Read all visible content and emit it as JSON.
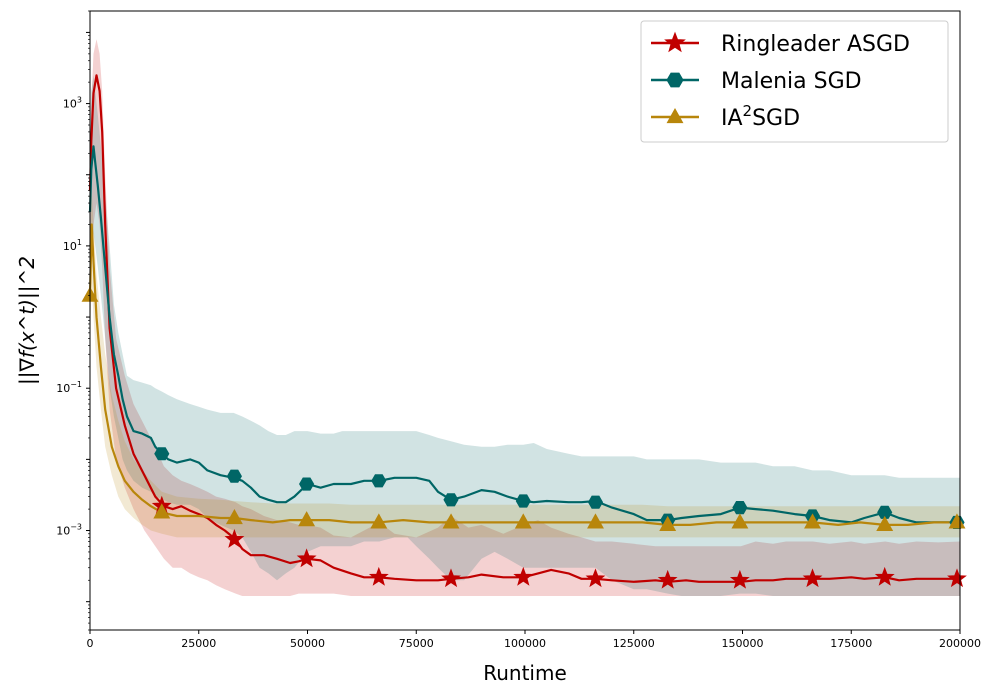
{
  "chart_data": {
    "type": "line",
    "xlabel": "Runtime",
    "ylabel": "||∇f(x^t)||^2",
    "yscale": "log",
    "xlim": [
      0,
      200000
    ],
    "ylim": [
      4e-05,
      20000
    ],
    "x_ticks": [
      0,
      25000,
      50000,
      75000,
      100000,
      125000,
      150000,
      175000,
      200000
    ],
    "y_ticks": [
      {
        "value": 0.001,
        "base": "10",
        "exp": "−3"
      },
      {
        "value": 0.1,
        "base": "10",
        "exp": "−1"
      },
      {
        "value": 10,
        "base": "10",
        "exp": "1"
      },
      {
        "value": 1000,
        "base": "10",
        "exp": "3"
      }
    ],
    "legend_position": "top-right",
    "series": [
      {
        "name": "Ringleader ASGD",
        "legend_label": "Ringleader ASGD",
        "color": "#c00000",
        "marker": "star",
        "x": [
          0,
          300,
          800,
          1500,
          2200,
          2800,
          3500,
          4500,
          6000,
          8000,
          10000,
          12500,
          15000,
          17000,
          19000,
          21000,
          23000,
          25000,
          27000,
          29000,
          31000,
          33500,
          35000,
          37000,
          40000,
          43000,
          46000,
          48000,
          50000,
          53000,
          56000,
          60000,
          63000,
          66500,
          70000,
          75000,
          80000,
          83000,
          87000,
          90000,
          95000,
          99600,
          103000,
          106000,
          110000,
          113000,
          116200,
          120000,
          125000,
          130000,
          133000,
          137000,
          140000,
          145000,
          149600,
          153000,
          157000,
          160000,
          166200,
          170000,
          175000,
          178000,
          182800,
          186000,
          190000,
          195000,
          200000
        ],
        "y": [
          60,
          300,
          1400,
          2500,
          1500,
          400,
          20,
          0.7,
          0.1,
          0.03,
          0.012,
          0.006,
          0.003,
          0.0022,
          0.002,
          0.0022,
          0.0019,
          0.0017,
          0.0015,
          0.0012,
          0.001,
          0.00075,
          0.00055,
          0.00045,
          0.00045,
          0.0004,
          0.00035,
          0.00037,
          0.0004,
          0.00038,
          0.0003,
          0.00025,
          0.00022,
          0.00022,
          0.00021,
          0.0002,
          0.0002,
          0.00021,
          0.00022,
          0.00024,
          0.00022,
          0.00022,
          0.00025,
          0.00028,
          0.00025,
          0.00021,
          0.00021,
          0.0002,
          0.00019,
          0.0002,
          0.00019,
          0.0002,
          0.00019,
          0.00019,
          0.00019,
          0.0002,
          0.0002,
          0.00021,
          0.00021,
          0.00021,
          0.00022,
          0.00021,
          0.00022,
          0.0002,
          0.00021,
          0.00021,
          0.00021
        ],
        "band_low": [
          2,
          5,
          20,
          40,
          20,
          5,
          0.5,
          0.05,
          0.01,
          0.004,
          0.002,
          0.001,
          0.0006,
          0.0004,
          0.0003,
          0.0003,
          0.00025,
          0.00022,
          0.0002,
          0.00017,
          0.00015,
          0.00013,
          0.00012,
          0.00012,
          0.00012,
          0.00012,
          0.00012,
          0.00013,
          0.00013,
          0.00013,
          0.00013,
          0.00012,
          0.00012,
          0.00012,
          0.00012,
          0.00012,
          0.00012,
          0.00012,
          0.00012,
          0.00012,
          0.00012,
          0.00012,
          0.00012,
          0.00012,
          0.00012,
          0.00012,
          0.00012,
          0.00012,
          0.00012,
          0.00012,
          0.00012,
          0.00012,
          0.00012,
          0.00012,
          0.00012,
          0.00012,
          0.00012,
          0.00012,
          0.00012,
          0.00012,
          0.00012,
          0.00012,
          0.00012,
          0.00012,
          0.00012,
          0.00012,
          0.00012
        ],
        "band_high": [
          150,
          1000,
          5000,
          8000,
          5000,
          1500,
          100,
          5,
          0.5,
          0.15,
          0.06,
          0.03,
          0.015,
          0.008,
          0.006,
          0.005,
          0.0045,
          0.004,
          0.0035,
          0.003,
          0.0028,
          0.0025,
          0.0022,
          0.002,
          0.0016,
          0.0014,
          0.0013,
          0.0012,
          0.0012,
          0.0011,
          0.00085,
          0.0008,
          0.001,
          0.0013,
          0.0009,
          0.0008,
          0.0011,
          0.0016,
          0.0011,
          0.0012,
          0.0009,
          0.0012,
          0.0014,
          0.0011,
          0.0009,
          0.0008,
          0.0007,
          0.0007,
          0.00065,
          0.0006,
          0.0006,
          0.0006,
          0.0006,
          0.0006,
          0.0006,
          0.0007,
          0.00065,
          0.0007,
          0.0007,
          0.00065,
          0.0007,
          0.00065,
          0.0007,
          0.00065,
          0.0007,
          0.00068,
          0.0007
        ],
        "markers_x": [
          16500,
          33200,
          49800,
          66400,
          83000,
          99600,
          116200,
          132800,
          149400,
          166100,
          182700,
          199300
        ],
        "markers_y": [
          0.0022,
          0.00075,
          0.0004,
          0.00022,
          0.00021,
          0.00022,
          0.00021,
          0.0002,
          0.0002,
          0.00021,
          0.00022,
          0.00021
        ]
      },
      {
        "name": "Malenia SGD",
        "legend_label": "Malenia SGD",
        "color": "#006666",
        "marker": "hexagon",
        "x": [
          0,
          300,
          800,
          1200,
          1800,
          2500,
          3500,
          4500,
          5500,
          6500,
          7500,
          8500,
          10000,
          12000,
          14000,
          15000,
          16500,
          18000,
          20000,
          23000,
          25000,
          27000,
          30000,
          33000,
          35000,
          37000,
          39000,
          41000,
          43000,
          45000,
          47000,
          50000,
          53000,
          56000,
          58000,
          60000,
          63000,
          66500,
          70000,
          73000,
          75000,
          78000,
          80000,
          83000,
          86000,
          90000,
          93000,
          96000,
          99600,
          102000,
          105000,
          110000,
          113000,
          116200,
          120000,
          125000,
          128000,
          132800,
          136000,
          140000,
          145000,
          149400,
          153000,
          157000,
          162000,
          166100,
          170000,
          175000,
          178000,
          182700,
          186000,
          190000,
          195000,
          200000
        ],
        "y": [
          30,
          120,
          250,
          150,
          70,
          25,
          5,
          1,
          0.3,
          0.15,
          0.07,
          0.04,
          0.025,
          0.023,
          0.02,
          0.015,
          0.012,
          0.01,
          0.009,
          0.01,
          0.009,
          0.007,
          0.006,
          0.0055,
          0.005,
          0.004,
          0.003,
          0.0027,
          0.0025,
          0.0025,
          0.003,
          0.0045,
          0.004,
          0.0045,
          0.0045,
          0.0045,
          0.005,
          0.005,
          0.0055,
          0.0055,
          0.0055,
          0.005,
          0.0035,
          0.0027,
          0.003,
          0.0037,
          0.0035,
          0.003,
          0.0026,
          0.0025,
          0.0026,
          0.0025,
          0.0025,
          0.0026,
          0.0021,
          0.0017,
          0.0014,
          0.0014,
          0.0015,
          0.0016,
          0.0017,
          0.0021,
          0.002,
          0.0019,
          0.0017,
          0.0016,
          0.0014,
          0.0013,
          0.0015,
          0.0018,
          0.0015,
          0.0013,
          0.0013,
          0.0013
        ],
        "band_low": [
          1,
          5,
          15,
          10,
          5,
          2,
          0.5,
          0.1,
          0.04,
          0.02,
          0.01,
          0.007,
          0.005,
          0.004,
          0.0035,
          0.003,
          0.0028,
          0.0025,
          0.0023,
          0.0023,
          0.002,
          0.0015,
          0.0012,
          0.001,
          0.0008,
          0.0005,
          0.0003,
          0.00025,
          0.0002,
          0.00025,
          0.0003,
          0.0005,
          0.0006,
          0.0006,
          0.0006,
          0.0006,
          0.0007,
          0.0007,
          0.0008,
          0.0008,
          0.0006,
          0.0004,
          0.0003,
          0.0002,
          0.0002,
          0.0004,
          0.0005,
          0.0004,
          0.0003,
          0.0003,
          0.0003,
          0.0003,
          0.0003,
          0.0003,
          0.0002,
          0.00015,
          0.00015,
          0.00013,
          0.00012,
          0.00012,
          0.00012,
          0.00013,
          0.00013,
          0.00012,
          0.00012,
          0.00012,
          0.00012,
          0.00012,
          0.00012,
          0.00012,
          0.00012,
          0.00012,
          0.00012,
          0.00012
        ],
        "band_high": [
          300,
          1500,
          2500,
          1500,
          700,
          250,
          50,
          10,
          1.5,
          0.6,
          0.3,
          0.15,
          0.13,
          0.12,
          0.11,
          0.1,
          0.09,
          0.08,
          0.07,
          0.06,
          0.055,
          0.05,
          0.045,
          0.045,
          0.04,
          0.035,
          0.03,
          0.025,
          0.022,
          0.022,
          0.025,
          0.025,
          0.023,
          0.023,
          0.025,
          0.025,
          0.025,
          0.025,
          0.025,
          0.025,
          0.025,
          0.022,
          0.02,
          0.018,
          0.016,
          0.015,
          0.015,
          0.016,
          0.016,
          0.017,
          0.014,
          0.012,
          0.011,
          0.011,
          0.011,
          0.011,
          0.01,
          0.01,
          0.01,
          0.01,
          0.009,
          0.009,
          0.009,
          0.008,
          0.008,
          0.007,
          0.007,
          0.006,
          0.006,
          0.006,
          0.0055,
          0.0055,
          0.0055,
          0.0055
        ],
        "markers_x": [
          16500,
          33200,
          49800,
          66400,
          83000,
          99600,
          116200,
          132800,
          149400,
          166100,
          182700,
          199300
        ],
        "markers_y": [
          0.012,
          0.0058,
          0.0045,
          0.005,
          0.0027,
          0.0026,
          0.0025,
          0.0014,
          0.0021,
          0.0016,
          0.0018,
          0.0013
        ]
      },
      {
        "name": "IA2SGD",
        "legend_label": "IA",
        "legend_sup": "2",
        "legend_suffix": "SGD",
        "color": "#b8860b",
        "marker": "triangle",
        "x": [
          0,
          400,
          800,
          1500,
          2500,
          3500,
          5000,
          6500,
          8000,
          10000,
          12000,
          14000,
          16500,
          20000,
          25000,
          30000,
          33200,
          37000,
          42000,
          46000,
          49800,
          55000,
          60000,
          66400,
          72000,
          78000,
          83000,
          88000,
          93000,
          99600,
          105000,
          110000,
          116200,
          122000,
          127000,
          132800,
          138000,
          144000,
          149400,
          155000,
          160000,
          166100,
          172000,
          177000,
          182700,
          188000,
          194000,
          200000
        ],
        "y": [
          2,
          20,
          6,
          1,
          0.2,
          0.05,
          0.015,
          0.008,
          0.005,
          0.0035,
          0.0027,
          0.0022,
          0.0018,
          0.0016,
          0.0016,
          0.0015,
          0.0015,
          0.0014,
          0.0013,
          0.0014,
          0.0014,
          0.0014,
          0.0013,
          0.0013,
          0.0014,
          0.0013,
          0.0013,
          0.0013,
          0.0013,
          0.0013,
          0.0013,
          0.0013,
          0.0013,
          0.0013,
          0.0013,
          0.0012,
          0.0012,
          0.0013,
          0.0013,
          0.0013,
          0.0013,
          0.0013,
          0.0012,
          0.0013,
          0.0012,
          0.0012,
          0.0013,
          0.0013
        ],
        "band_low": [
          0.5,
          3,
          1,
          0.2,
          0.05,
          0.015,
          0.006,
          0.003,
          0.002,
          0.0015,
          0.0012,
          0.001,
          0.0009,
          0.0008,
          0.0008,
          0.0008,
          0.0008,
          0.0008,
          0.0008,
          0.0008,
          0.0008,
          0.0008,
          0.0008,
          0.0008,
          0.0008,
          0.0008,
          0.0008,
          0.0008,
          0.0008,
          0.0008,
          0.0008,
          0.0008,
          0.0008,
          0.0008,
          0.0008,
          0.0008,
          0.0008,
          0.0008,
          0.0008,
          0.0008,
          0.0008,
          0.0008,
          0.0008,
          0.0008,
          0.0008,
          0.0008,
          0.0008,
          0.0008
        ],
        "band_high": [
          8,
          60,
          20,
          4,
          1,
          0.3,
          0.08,
          0.035,
          0.018,
          0.01,
          0.007,
          0.005,
          0.0035,
          0.003,
          0.0028,
          0.0027,
          0.0026,
          0.0025,
          0.0024,
          0.0024,
          0.0024,
          0.0024,
          0.0023,
          0.0023,
          0.0023,
          0.0023,
          0.0023,
          0.0023,
          0.0023,
          0.0023,
          0.0023,
          0.0023,
          0.0023,
          0.0023,
          0.0023,
          0.0022,
          0.0022,
          0.0022,
          0.0022,
          0.0022,
          0.0022,
          0.0022,
          0.0022,
          0.0022,
          0.0022,
          0.0022,
          0.0022,
          0.0022
        ],
        "markers_x": [
          0,
          16500,
          33200,
          49800,
          66400,
          83000,
          99600,
          116200,
          132800,
          149400,
          166100,
          182700,
          199300
        ],
        "markers_y": [
          2,
          0.0018,
          0.0015,
          0.0014,
          0.0013,
          0.0013,
          0.0013,
          0.0013,
          0.0012,
          0.0013,
          0.0013,
          0.0012,
          0.0013
        ]
      }
    ]
  }
}
